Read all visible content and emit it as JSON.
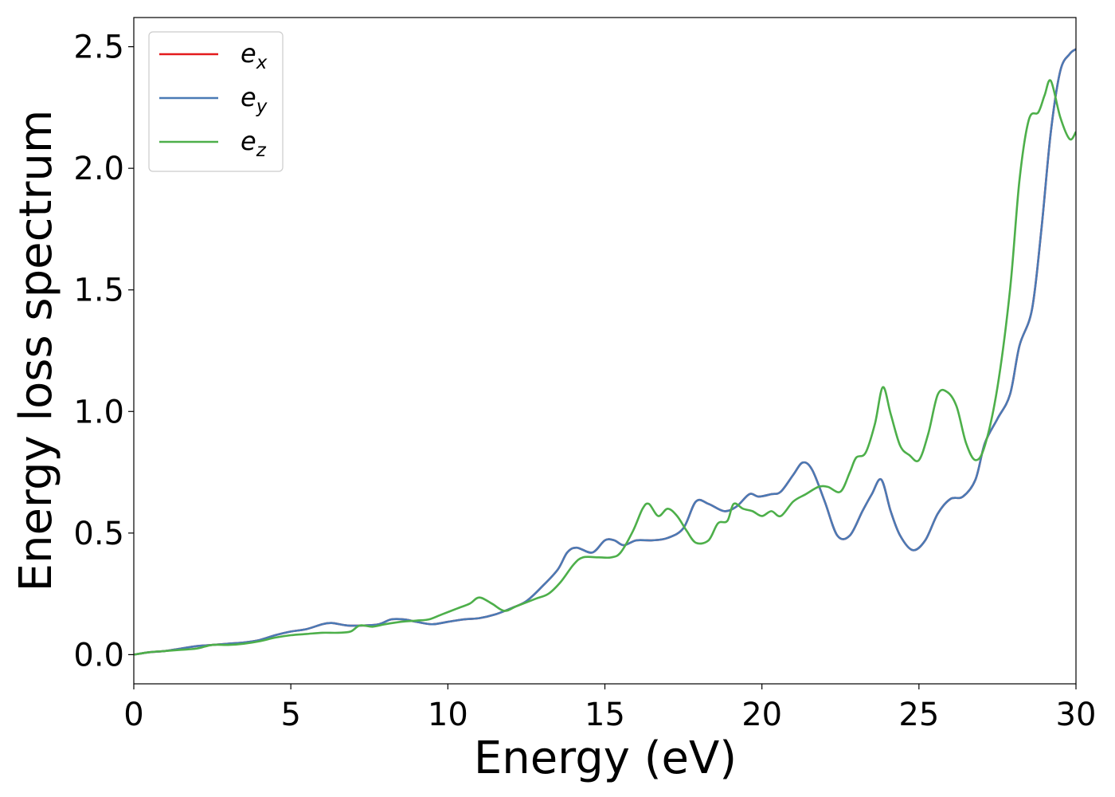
{
  "chart_data": {
    "type": "line",
    "title": "",
    "xlabel": "Energy (eV)",
    "ylabel": "Energy loss spectrum",
    "xlim": [
      0,
      30
    ],
    "ylim": [
      -0.12,
      2.62
    ],
    "xticks": [
      0,
      5,
      10,
      15,
      20,
      25,
      30
    ],
    "xtick_labels": [
      "0",
      "5",
      "10",
      "15",
      "20",
      "25",
      "30"
    ],
    "yticks": [
      0.0,
      0.5,
      1.0,
      1.5,
      2.0,
      2.5
    ],
    "ytick_labels": [
      "0.0",
      "0.5",
      "1.0",
      "1.5",
      "2.0",
      "2.5"
    ],
    "grid": false,
    "legend_position": "upper-left",
    "series": [
      {
        "name": "e_x",
        "color": "#e41a1c",
        "points": [
          [
            0,
            0
          ],
          [
            0.5,
            0.01
          ],
          [
            1,
            0.015
          ],
          [
            1.5,
            0.025
          ],
          [
            2,
            0.035
          ],
          [
            2.5,
            0.04
          ],
          [
            3,
            0.045
          ],
          [
            3.5,
            0.05
          ],
          [
            4,
            0.06
          ],
          [
            4.5,
            0.08
          ],
          [
            5,
            0.095
          ],
          [
            5.5,
            0.105
          ],
          [
            6,
            0.125
          ],
          [
            6.3,
            0.13
          ],
          [
            6.8,
            0.12
          ],
          [
            7.3,
            0.12
          ],
          [
            7.8,
            0.125
          ],
          [
            8.2,
            0.145
          ],
          [
            8.6,
            0.145
          ],
          [
            9.0,
            0.135
          ],
          [
            9.5,
            0.125
          ],
          [
            10,
            0.135
          ],
          [
            10.5,
            0.145
          ],
          [
            11,
            0.15
          ],
          [
            11.5,
            0.165
          ],
          [
            12,
            0.19
          ],
          [
            12.5,
            0.22
          ],
          [
            13,
            0.28
          ],
          [
            13.5,
            0.35
          ],
          [
            13.8,
            0.42
          ],
          [
            14.1,
            0.44
          ],
          [
            14.6,
            0.42
          ],
          [
            15.0,
            0.47
          ],
          [
            15.3,
            0.47
          ],
          [
            15.6,
            0.45
          ],
          [
            16.0,
            0.47
          ],
          [
            16.5,
            0.47
          ],
          [
            17.0,
            0.48
          ],
          [
            17.5,
            0.52
          ],
          [
            17.9,
            0.63
          ],
          [
            18.3,
            0.62
          ],
          [
            18.8,
            0.59
          ],
          [
            19.2,
            0.61
          ],
          [
            19.6,
            0.66
          ],
          [
            19.9,
            0.65
          ],
          [
            20.3,
            0.66
          ],
          [
            20.6,
            0.67
          ],
          [
            21.0,
            0.74
          ],
          [
            21.3,
            0.79
          ],
          [
            21.6,
            0.76
          ],
          [
            22.0,
            0.63
          ],
          [
            22.4,
            0.49
          ],
          [
            22.8,
            0.49
          ],
          [
            23.2,
            0.59
          ],
          [
            23.5,
            0.66
          ],
          [
            23.8,
            0.72
          ],
          [
            24.1,
            0.59
          ],
          [
            24.4,
            0.49
          ],
          [
            24.8,
            0.43
          ],
          [
            25.2,
            0.47
          ],
          [
            25.6,
            0.58
          ],
          [
            26.0,
            0.64
          ],
          [
            26.4,
            0.65
          ],
          [
            26.8,
            0.72
          ],
          [
            27.1,
            0.87
          ],
          [
            27.5,
            0.97
          ],
          [
            27.9,
            1.07
          ],
          [
            28.2,
            1.27
          ],
          [
            28.6,
            1.42
          ],
          [
            28.9,
            1.75
          ],
          [
            29.2,
            2.15
          ],
          [
            29.5,
            2.4
          ],
          [
            29.8,
            2.47
          ],
          [
            30,
            2.49
          ]
        ]
      },
      {
        "name": "e_y",
        "color": "#4a7ab5",
        "points": [
          [
            0,
            0
          ],
          [
            0.5,
            0.01
          ],
          [
            1,
            0.015
          ],
          [
            1.5,
            0.025
          ],
          [
            2,
            0.035
          ],
          [
            2.5,
            0.04
          ],
          [
            3,
            0.045
          ],
          [
            3.5,
            0.05
          ],
          [
            4,
            0.06
          ],
          [
            4.5,
            0.08
          ],
          [
            5,
            0.095
          ],
          [
            5.5,
            0.105
          ],
          [
            6,
            0.125
          ],
          [
            6.3,
            0.13
          ],
          [
            6.8,
            0.12
          ],
          [
            7.3,
            0.12
          ],
          [
            7.8,
            0.125
          ],
          [
            8.2,
            0.145
          ],
          [
            8.6,
            0.145
          ],
          [
            9.0,
            0.135
          ],
          [
            9.5,
            0.125
          ],
          [
            10,
            0.135
          ],
          [
            10.5,
            0.145
          ],
          [
            11,
            0.15
          ],
          [
            11.5,
            0.165
          ],
          [
            12,
            0.19
          ],
          [
            12.5,
            0.22
          ],
          [
            13,
            0.28
          ],
          [
            13.5,
            0.35
          ],
          [
            13.8,
            0.42
          ],
          [
            14.1,
            0.44
          ],
          [
            14.6,
            0.42
          ],
          [
            15.0,
            0.47
          ],
          [
            15.3,
            0.47
          ],
          [
            15.6,
            0.45
          ],
          [
            16.0,
            0.47
          ],
          [
            16.5,
            0.47
          ],
          [
            17.0,
            0.48
          ],
          [
            17.5,
            0.52
          ],
          [
            17.9,
            0.63
          ],
          [
            18.3,
            0.62
          ],
          [
            18.8,
            0.59
          ],
          [
            19.2,
            0.61
          ],
          [
            19.6,
            0.66
          ],
          [
            19.9,
            0.65
          ],
          [
            20.3,
            0.66
          ],
          [
            20.6,
            0.67
          ],
          [
            21.0,
            0.74
          ],
          [
            21.3,
            0.79
          ],
          [
            21.6,
            0.76
          ],
          [
            22.0,
            0.63
          ],
          [
            22.4,
            0.49
          ],
          [
            22.8,
            0.49
          ],
          [
            23.2,
            0.59
          ],
          [
            23.5,
            0.66
          ],
          [
            23.8,
            0.72
          ],
          [
            24.1,
            0.59
          ],
          [
            24.4,
            0.49
          ],
          [
            24.8,
            0.43
          ],
          [
            25.2,
            0.47
          ],
          [
            25.6,
            0.58
          ],
          [
            26.0,
            0.64
          ],
          [
            26.4,
            0.65
          ],
          [
            26.8,
            0.72
          ],
          [
            27.1,
            0.87
          ],
          [
            27.5,
            0.97
          ],
          [
            27.9,
            1.07
          ],
          [
            28.2,
            1.27
          ],
          [
            28.6,
            1.42
          ],
          [
            28.9,
            1.75
          ],
          [
            29.2,
            2.15
          ],
          [
            29.5,
            2.4
          ],
          [
            29.8,
            2.47
          ],
          [
            30,
            2.49
          ]
        ]
      },
      {
        "name": "e_z",
        "color": "#4daf4a",
        "points": [
          [
            0,
            0
          ],
          [
            0.5,
            0.01
          ],
          [
            1,
            0.015
          ],
          [
            1.5,
            0.02
          ],
          [
            2,
            0.025
          ],
          [
            2.5,
            0.04
          ],
          [
            3,
            0.04
          ],
          [
            3.5,
            0.045
          ],
          [
            4,
            0.055
          ],
          [
            4.5,
            0.07
          ],
          [
            5,
            0.08
          ],
          [
            5.5,
            0.085
          ],
          [
            6,
            0.09
          ],
          [
            6.5,
            0.09
          ],
          [
            6.9,
            0.095
          ],
          [
            7.2,
            0.12
          ],
          [
            7.6,
            0.115
          ],
          [
            8.0,
            0.125
          ],
          [
            8.5,
            0.135
          ],
          [
            9.0,
            0.14
          ],
          [
            9.4,
            0.145
          ],
          [
            9.8,
            0.165
          ],
          [
            10.3,
            0.19
          ],
          [
            10.7,
            0.21
          ],
          [
            11.0,
            0.235
          ],
          [
            11.4,
            0.21
          ],
          [
            11.8,
            0.18
          ],
          [
            12.2,
            0.2
          ],
          [
            12.8,
            0.23
          ],
          [
            13.2,
            0.25
          ],
          [
            13.6,
            0.3
          ],
          [
            14.0,
            0.37
          ],
          [
            14.3,
            0.4
          ],
          [
            14.8,
            0.4
          ],
          [
            15.2,
            0.4
          ],
          [
            15.5,
            0.42
          ],
          [
            15.9,
            0.51
          ],
          [
            16.2,
            0.6
          ],
          [
            16.4,
            0.62
          ],
          [
            16.7,
            0.57
          ],
          [
            17.0,
            0.6
          ],
          [
            17.3,
            0.57
          ],
          [
            17.6,
            0.51
          ],
          [
            17.9,
            0.46
          ],
          [
            18.3,
            0.47
          ],
          [
            18.6,
            0.54
          ],
          [
            18.9,
            0.55
          ],
          [
            19.1,
            0.62
          ],
          [
            19.4,
            0.6
          ],
          [
            19.7,
            0.59
          ],
          [
            20.0,
            0.57
          ],
          [
            20.3,
            0.59
          ],
          [
            20.6,
            0.57
          ],
          [
            21.0,
            0.63
          ],
          [
            21.4,
            0.66
          ],
          [
            21.8,
            0.69
          ],
          [
            22.1,
            0.69
          ],
          [
            22.5,
            0.67
          ],
          [
            22.8,
            0.75
          ],
          [
            23.0,
            0.81
          ],
          [
            23.3,
            0.83
          ],
          [
            23.6,
            0.95
          ],
          [
            23.85,
            1.1
          ],
          [
            24.1,
            0.99
          ],
          [
            24.4,
            0.86
          ],
          [
            24.7,
            0.82
          ],
          [
            25.0,
            0.8
          ],
          [
            25.3,
            0.91
          ],
          [
            25.6,
            1.07
          ],
          [
            25.9,
            1.08
          ],
          [
            26.2,
            1.02
          ],
          [
            26.5,
            0.87
          ],
          [
            26.8,
            0.8
          ],
          [
            27.1,
            0.86
          ],
          [
            27.5,
            1.1
          ],
          [
            27.9,
            1.5
          ],
          [
            28.2,
            1.95
          ],
          [
            28.5,
            2.2
          ],
          [
            28.8,
            2.23
          ],
          [
            29.0,
            2.3
          ],
          [
            29.2,
            2.36
          ],
          [
            29.5,
            2.21
          ],
          [
            29.8,
            2.12
          ],
          [
            30,
            2.15
          ]
        ]
      }
    ]
  }
}
